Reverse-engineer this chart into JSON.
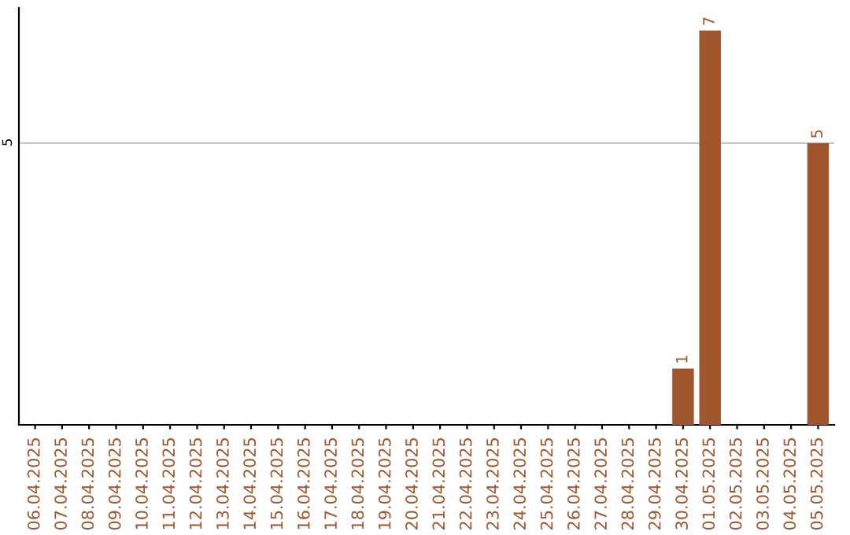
{
  "chart_data": {
    "type": "bar",
    "categories": [
      "06.04.2025",
      "07.04.2025",
      "08.04.2025",
      "09.04.2025",
      "10.04.2025",
      "11.04.2025",
      "12.04.2025",
      "13.04.2025",
      "14.04.2025",
      "15.04.2025",
      "16.04.2025",
      "17.04.2025",
      "18.04.2025",
      "19.04.2025",
      "20.04.2025",
      "21.04.2025",
      "22.04.2025",
      "23.04.2025",
      "24.04.2025",
      "25.04.2025",
      "26.04.2025",
      "27.04.2025",
      "28.04.2025",
      "29.04.2025",
      "30.04.2025",
      "01.05.2025",
      "02.05.2025",
      "03.05.2025",
      "04.05.2025",
      "05.05.2025"
    ],
    "values": [
      null,
      null,
      null,
      null,
      null,
      null,
      null,
      null,
      null,
      null,
      null,
      null,
      null,
      null,
      null,
      null,
      null,
      null,
      null,
      null,
      null,
      null,
      null,
      null,
      1,
      7,
      null,
      null,
      null,
      5
    ],
    "data_labels": true,
    "color": "#a0562c",
    "ylim": [
      0,
      7.4
    ],
    "yticks": [
      5
    ],
    "grid": "y"
  }
}
